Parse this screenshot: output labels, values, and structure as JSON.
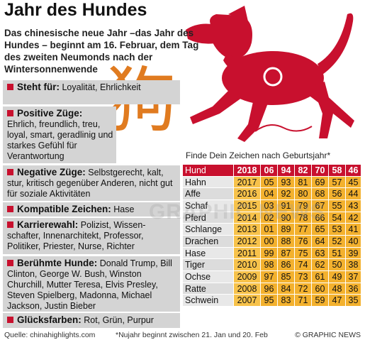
{
  "header": {
    "title": "Jahr des Hundes",
    "subtitle": "Das chinesische neue Jahr –das Jahr des Hundes – beginnt am 16. Februar, dem Tag des zweiten Neumonds nach der Wintersonnenwende",
    "character": "狗"
  },
  "sections": [
    {
      "label": "Steht für:",
      "text": "Loyalität, Ehrlichkeit"
    },
    {
      "label": "Positive Züge:",
      "text": "Ehrlich, freundlich, treu, loyal, smart, geradlinig und starkes Gefühl für Verantwortung"
    },
    {
      "label": "Negative Züge:",
      "text": "Selbstgerecht, kalt, stur, kritisch gegenüber Anderen, nicht gut für soziale Aktivitäten"
    },
    {
      "label": "Kompatible Zeichen:",
      "text": "Hase"
    },
    {
      "label": "Karrierewahl:",
      "text": "Polizist, Wissen-schafter, Innenarchitekt, Professor, Politiker, Priester, Nurse, Richter"
    },
    {
      "label": "Berühmte Hunde:",
      "text": "Donald Trump, Bill Clinton, George W. Bush, Winston Churchill, Mutter Teresa, Elvis Presley, Steven Spielberg, Madonna, Michael Jackson, Justin Bieber"
    },
    {
      "label": "Glücksfarben:",
      "text": "Rot, Grün, Purpur"
    }
  ],
  "table": {
    "caption": "Finde Dein Zeichen nach Geburtsjahr*",
    "header": [
      "Hund",
      "2018",
      "06",
      "94",
      "82",
      "70",
      "58",
      "46"
    ],
    "rows": [
      [
        "Hahn",
        "2017",
        "05",
        "93",
        "81",
        "69",
        "57",
        "45"
      ],
      [
        "Affe",
        "2016",
        "04",
        "92",
        "80",
        "68",
        "56",
        "44"
      ],
      [
        "Schaf",
        "2015",
        "03",
        "91",
        "79",
        "67",
        "55",
        "43"
      ],
      [
        "Pferd",
        "2014",
        "02",
        "90",
        "78",
        "66",
        "54",
        "42"
      ],
      [
        "Schlange",
        "2013",
        "01",
        "89",
        "77",
        "65",
        "53",
        "41"
      ],
      [
        "Drachen",
        "2012",
        "00",
        "88",
        "76",
        "64",
        "52",
        "40"
      ],
      [
        "Hase",
        "2011",
        "99",
        "87",
        "75",
        "63",
        "51",
        "39"
      ],
      [
        "Tiger",
        "2010",
        "98",
        "86",
        "74",
        "62",
        "50",
        "38"
      ],
      [
        "Ochse",
        "2009",
        "97",
        "85",
        "73",
        "61",
        "49",
        "37"
      ],
      [
        "Ratte",
        "2008",
        "96",
        "84",
        "72",
        "60",
        "48",
        "36"
      ],
      [
        "Schwein",
        "2007",
        "95",
        "83",
        "71",
        "59",
        "47",
        "35"
      ]
    ]
  },
  "watermark": "GRAPHIC NEWS",
  "footer": {
    "source": "Quelle: chinahighlights.com",
    "note": "*Nujahr beginnt zwischen 21. Jan und 20. Feb",
    "credit": "© GRAPHIC NEWS"
  }
}
